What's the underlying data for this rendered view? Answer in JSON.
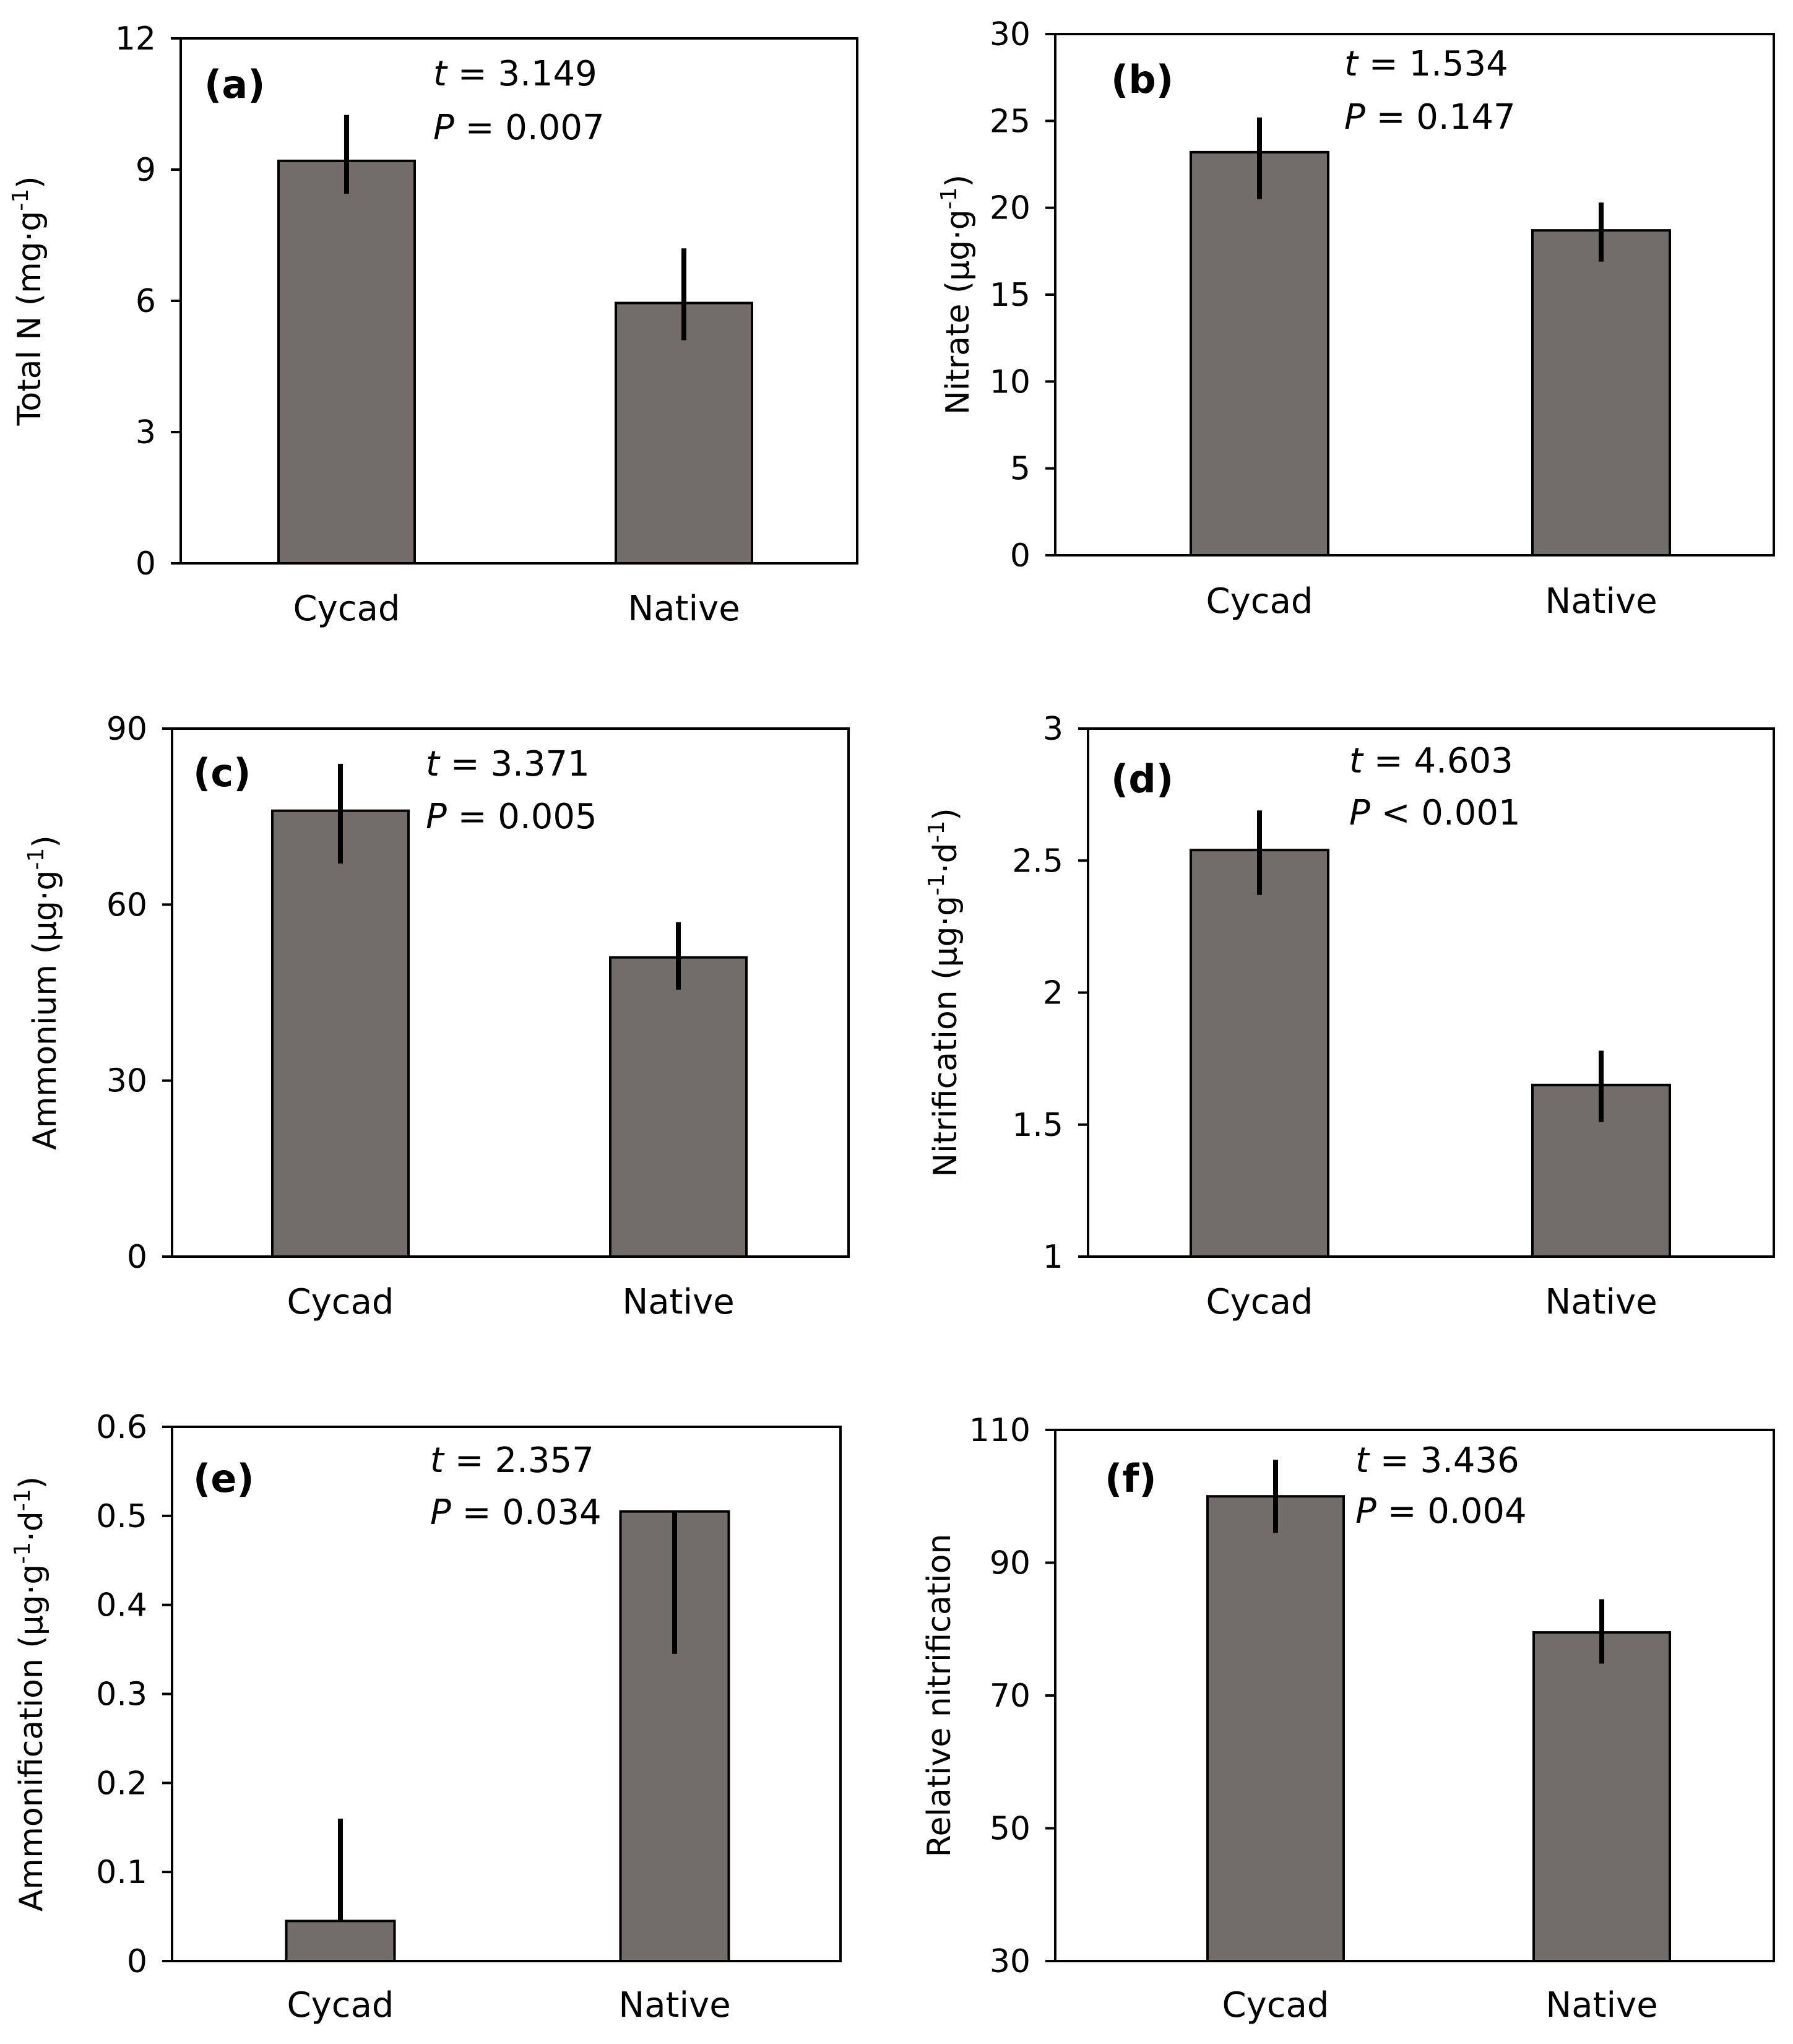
{
  "colors": {
    "bar": "#726d6a",
    "axis": "#000000"
  },
  "chart_data": [
    {
      "type": "bar",
      "panel_label": "(a)",
      "ylabel_main": "Total N (mg·g",
      "ylabel_exp": "-1",
      "ylabel_close": ")",
      "categories": [
        "Cycad",
        "Native"
      ],
      "values": [
        9.2,
        5.95
      ],
      "errors": [
        [
          8.45,
          10.25
        ],
        [
          5.1,
          7.2
        ]
      ],
      "ylim": [
        0,
        12
      ],
      "yticks": [
        0,
        3,
        6,
        9,
        12
      ],
      "ytick_labels": [
        "0",
        "3",
        "6",
        "9",
        "12"
      ],
      "stat_t_prefix": "t",
      "stat_t_value": " = 3.149",
      "stat_p_prefix": "P",
      "stat_p_value": " = 0.007"
    },
    {
      "type": "bar",
      "panel_label": "(b)",
      "ylabel_main": "Nitrate (µg·g",
      "ylabel_exp": "-1",
      "ylabel_close": ")",
      "categories": [
        "Cycad",
        "Native"
      ],
      "values": [
        23.2,
        18.7
      ],
      "errors": [
        [
          20.5,
          25.2
        ],
        [
          16.9,
          20.3
        ]
      ],
      "ylim": [
        0,
        30
      ],
      "yticks": [
        0,
        5,
        10,
        15,
        20,
        25,
        30
      ],
      "ytick_labels": [
        "0",
        "5",
        "10",
        "15",
        "20",
        "25",
        "30"
      ],
      "stat_t_prefix": "t",
      "stat_t_value": " = 1.534",
      "stat_p_prefix": "P",
      "stat_p_value": " = 0.147"
    },
    {
      "type": "bar",
      "panel_label": "(c)",
      "ylabel_main": "Ammonium (µg·g",
      "ylabel_exp": "-1",
      "ylabel_close": ")",
      "categories": [
        "Cycad",
        "Native"
      ],
      "values": [
        76,
        51
      ],
      "errors": [
        [
          67,
          84
        ],
        [
          45.5,
          57
        ]
      ],
      "ylim": [
        0,
        90
      ],
      "yticks": [
        0,
        30,
        60,
        90
      ],
      "ytick_labels": [
        "0",
        "30",
        "60",
        "90"
      ],
      "stat_t_prefix": "t",
      "stat_t_value": " = 3.371",
      "stat_p_prefix": "P",
      "stat_p_value": " = 0.005"
    },
    {
      "type": "bar",
      "panel_label": "(d)",
      "ylabel_main": "Nitrification (µg·g",
      "ylabel_exp": "-1",
      "ylabel_mid": "·d",
      "ylabel_exp2": "-1",
      "ylabel_close": ")",
      "categories": [
        "Cycad",
        "Native"
      ],
      "values": [
        2.54,
        1.65
      ],
      "errors": [
        [
          2.37,
          2.69
        ],
        [
          1.51,
          1.78
        ]
      ],
      "ylim": [
        1,
        3
      ],
      "yticks": [
        1,
        1.5,
        2,
        2.5,
        3
      ],
      "ytick_labels": [
        "1",
        "1.5",
        "2",
        "2.5",
        "3"
      ],
      "stat_t_prefix": "t",
      "stat_t_value": " = 4.603",
      "stat_p_prefix": "P",
      "stat_p_value": " < 0.001"
    },
    {
      "type": "bar",
      "panel_label": "(e)",
      "ylabel_main": "Ammonification (µg·g",
      "ylabel_exp": "-1",
      "ylabel_mid": "·d",
      "ylabel_exp2": "-1",
      "ylabel_close": ")",
      "categories": [
        "Cycad",
        "Native"
      ],
      "values": [
        0.045,
        0.505
      ],
      "errors": [
        [
          0.045,
          0.16
        ],
        [
          0.345,
          0.505
        ]
      ],
      "ylim": [
        0,
        0.6
      ],
      "yticks": [
        0,
        0.1,
        0.2,
        0.3,
        0.4,
        0.5,
        0.6
      ],
      "ytick_labels": [
        "0",
        "0.1",
        "0.2",
        "0.3",
        "0.4",
        "0.5",
        "0.6"
      ],
      "stat_t_prefix": "t",
      "stat_t_value": " = 2.357",
      "stat_p_prefix": "P",
      "stat_p_value": " = 0.034"
    },
    {
      "type": "bar",
      "panel_label": "(f)",
      "ylabel_main": "Relative nitrification",
      "categories": [
        "Cycad",
        "Native"
      ],
      "values": [
        100,
        79.5
      ],
      "errors": [
        [
          94.5,
          105.5
        ],
        [
          74.8,
          84.5
        ]
      ],
      "ylim": [
        30,
        110
      ],
      "yticks": [
        30,
        50,
        70,
        90,
        110
      ],
      "ytick_labels": [
        "30",
        "50",
        "70",
        "90",
        "110"
      ],
      "stat_t_prefix": "t",
      "stat_t_value": " = 3.436",
      "stat_p_prefix": "P",
      "stat_p_value": " = 0.004"
    }
  ]
}
